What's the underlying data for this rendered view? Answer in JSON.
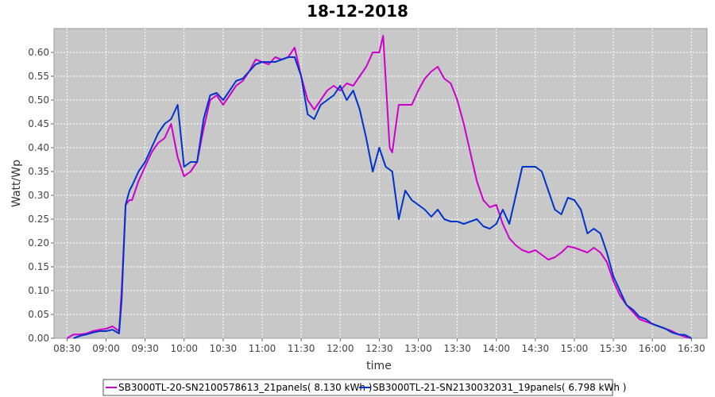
{
  "chart_data": {
    "type": "line",
    "title": "18-12-2018",
    "xlabel": "time",
    "ylabel": "Watt/Wp",
    "xlim": [
      "08:20",
      "16:42"
    ],
    "ylim": [
      0,
      0.65
    ],
    "x_ticks": [
      "08:30",
      "09:00",
      "09:30",
      "10:00",
      "10:30",
      "11:00",
      "11:30",
      "12:00",
      "12:30",
      "13:00",
      "13:30",
      "14:00",
      "14:30",
      "15:00",
      "15:30",
      "16:00",
      "16:30"
    ],
    "y_ticks": [
      "0.00",
      "0.05",
      "0.10",
      "0.15",
      "0.20",
      "0.25",
      "0.30",
      "0.35",
      "0.40",
      "0.45",
      "0.50",
      "0.55",
      "0.60"
    ],
    "grid": true,
    "legend_position": "bottom",
    "colors": {
      "plot_background": "#c8c8c8",
      "grid": "#ffffff"
    },
    "series": [
      {
        "name": "SB3000TL-20-SN2100578613_21panels( 8.130 kWh )",
        "color": "#cc00cc",
        "points": [
          [
            "08:30",
            0.0
          ],
          [
            "08:35",
            0.008
          ],
          [
            "08:40",
            0.008
          ],
          [
            "08:45",
            0.01
          ],
          [
            "08:50",
            0.015
          ],
          [
            "08:55",
            0.018
          ],
          [
            "09:00",
            0.02
          ],
          [
            "09:05",
            0.025
          ],
          [
            "09:10",
            0.015
          ],
          [
            "09:12",
            0.1
          ],
          [
            "09:15",
            0.28
          ],
          [
            "09:18",
            0.29
          ],
          [
            "09:20",
            0.29
          ],
          [
            "09:25",
            0.33
          ],
          [
            "09:30",
            0.36
          ],
          [
            "09:35",
            0.39
          ],
          [
            "09:40",
            0.41
          ],
          [
            "09:45",
            0.42
          ],
          [
            "09:50",
            0.45
          ],
          [
            "09:55",
            0.38
          ],
          [
            "10:00",
            0.34
          ],
          [
            "10:05",
            0.35
          ],
          [
            "10:10",
            0.37
          ],
          [
            "10:15",
            0.44
          ],
          [
            "10:20",
            0.5
          ],
          [
            "10:25",
            0.51
          ],
          [
            "10:30",
            0.49
          ],
          [
            "10:35",
            0.51
          ],
          [
            "10:40",
            0.53
          ],
          [
            "10:45",
            0.54
          ],
          [
            "10:50",
            0.56
          ],
          [
            "10:55",
            0.585
          ],
          [
            "11:00",
            0.58
          ],
          [
            "11:05",
            0.575
          ],
          [
            "11:10",
            0.59
          ],
          [
            "11:15",
            0.585
          ],
          [
            "11:20",
            0.59
          ],
          [
            "11:25",
            0.61
          ],
          [
            "11:30",
            0.55
          ],
          [
            "11:35",
            0.5
          ],
          [
            "11:40",
            0.48
          ],
          [
            "11:45",
            0.5
          ],
          [
            "11:50",
            0.52
          ],
          [
            "11:55",
            0.53
          ],
          [
            "12:00",
            0.52
          ],
          [
            "12:05",
            0.535
          ],
          [
            "12:10",
            0.53
          ],
          [
            "12:15",
            0.55
          ],
          [
            "12:20",
            0.57
          ],
          [
            "12:25",
            0.6
          ],
          [
            "12:30",
            0.6
          ],
          [
            "12:33",
            0.635
          ],
          [
            "12:38",
            0.4
          ],
          [
            "12:40",
            0.39
          ],
          [
            "12:45",
            0.49
          ],
          [
            "12:50",
            0.49
          ],
          [
            "12:55",
            0.49
          ],
          [
            "13:00",
            0.52
          ],
          [
            "13:05",
            0.545
          ],
          [
            "13:10",
            0.56
          ],
          [
            "13:15",
            0.57
          ],
          [
            "13:20",
            0.545
          ],
          [
            "13:25",
            0.535
          ],
          [
            "13:30",
            0.5
          ],
          [
            "13:35",
            0.45
          ],
          [
            "13:40",
            0.39
          ],
          [
            "13:45",
            0.33
          ],
          [
            "13:50",
            0.29
          ],
          [
            "13:55",
            0.275
          ],
          [
            "14:00",
            0.28
          ],
          [
            "14:05",
            0.24
          ],
          [
            "14:10",
            0.21
          ],
          [
            "14:15",
            0.195
          ],
          [
            "14:20",
            0.185
          ],
          [
            "14:25",
            0.18
          ],
          [
            "14:30",
            0.185
          ],
          [
            "14:35",
            0.175
          ],
          [
            "14:40",
            0.165
          ],
          [
            "14:45",
            0.17
          ],
          [
            "14:50",
            0.18
          ],
          [
            "14:55",
            0.193
          ],
          [
            "15:00",
            0.19
          ],
          [
            "15:05",
            0.185
          ],
          [
            "15:10",
            0.18
          ],
          [
            "15:15",
            0.19
          ],
          [
            "15:20",
            0.18
          ],
          [
            "15:25",
            0.16
          ],
          [
            "15:30",
            0.12
          ],
          [
            "15:35",
            0.09
          ],
          [
            "15:40",
            0.07
          ],
          [
            "15:45",
            0.055
          ],
          [
            "15:50",
            0.04
          ],
          [
            "15:55",
            0.035
          ],
          [
            "16:00",
            0.03
          ],
          [
            "16:05",
            0.025
          ],
          [
            "16:10",
            0.02
          ],
          [
            "16:15",
            0.015
          ],
          [
            "16:20",
            0.008
          ],
          [
            "16:25",
            0.003
          ],
          [
            "16:30",
            0.0
          ]
        ]
      },
      {
        "name": "SB3000TL-21-SN2130032031_19panels( 6.798 kWh )",
        "color": "#0033cc",
        "points": [
          [
            "08:35",
            0.0
          ],
          [
            "08:40",
            0.005
          ],
          [
            "08:45",
            0.008
          ],
          [
            "08:50",
            0.012
          ],
          [
            "08:55",
            0.015
          ],
          [
            "09:00",
            0.015
          ],
          [
            "09:05",
            0.018
          ],
          [
            "09:10",
            0.01
          ],
          [
            "09:12",
            0.08
          ],
          [
            "09:15",
            0.28
          ],
          [
            "09:18",
            0.31
          ],
          [
            "09:20",
            0.32
          ],
          [
            "09:25",
            0.35
          ],
          [
            "09:30",
            0.37
          ],
          [
            "09:35",
            0.4
          ],
          [
            "09:40",
            0.43
          ],
          [
            "09:45",
            0.45
          ],
          [
            "09:50",
            0.46
          ],
          [
            "09:55",
            0.49
          ],
          [
            "10:00",
            0.36
          ],
          [
            "10:05",
            0.37
          ],
          [
            "10:10",
            0.37
          ],
          [
            "10:15",
            0.46
          ],
          [
            "10:20",
            0.51
          ],
          [
            "10:25",
            0.515
          ],
          [
            "10:30",
            0.5
          ],
          [
            "10:35",
            0.52
          ],
          [
            "10:40",
            0.54
          ],
          [
            "10:45",
            0.545
          ],
          [
            "10:50",
            0.56
          ],
          [
            "10:55",
            0.575
          ],
          [
            "11:00",
            0.58
          ],
          [
            "11:05",
            0.58
          ],
          [
            "11:10",
            0.58
          ],
          [
            "11:15",
            0.585
          ],
          [
            "11:20",
            0.59
          ],
          [
            "11:25",
            0.59
          ],
          [
            "11:30",
            0.55
          ],
          [
            "11:35",
            0.47
          ],
          [
            "11:40",
            0.46
          ],
          [
            "11:45",
            0.49
          ],
          [
            "11:50",
            0.5
          ],
          [
            "11:55",
            0.51
          ],
          [
            "12:00",
            0.53
          ],
          [
            "12:05",
            0.5
          ],
          [
            "12:10",
            0.52
          ],
          [
            "12:15",
            0.48
          ],
          [
            "12:20",
            0.42
          ],
          [
            "12:25",
            0.35
          ],
          [
            "12:30",
            0.4
          ],
          [
            "12:35",
            0.36
          ],
          [
            "12:40",
            0.35
          ],
          [
            "12:45",
            0.25
          ],
          [
            "12:50",
            0.31
          ],
          [
            "12:55",
            0.29
          ],
          [
            "13:00",
            0.28
          ],
          [
            "13:05",
            0.27
          ],
          [
            "13:10",
            0.255
          ],
          [
            "13:15",
            0.27
          ],
          [
            "13:20",
            0.25
          ],
          [
            "13:25",
            0.245
          ],
          [
            "13:30",
            0.245
          ],
          [
            "13:35",
            0.24
          ],
          [
            "13:40",
            0.245
          ],
          [
            "13:45",
            0.25
          ],
          [
            "13:50",
            0.235
          ],
          [
            "13:55",
            0.23
          ],
          [
            "14:00",
            0.24
          ],
          [
            "14:05",
            0.27
          ],
          [
            "14:10",
            0.24
          ],
          [
            "14:15",
            0.3
          ],
          [
            "14:20",
            0.36
          ],
          [
            "14:25",
            0.36
          ],
          [
            "14:30",
            0.36
          ],
          [
            "14:35",
            0.35
          ],
          [
            "14:40",
            0.31
          ],
          [
            "14:45",
            0.27
          ],
          [
            "14:50",
            0.26
          ],
          [
            "14:55",
            0.295
          ],
          [
            "15:00",
            0.29
          ],
          [
            "15:05",
            0.27
          ],
          [
            "15:10",
            0.22
          ],
          [
            "15:15",
            0.23
          ],
          [
            "15:20",
            0.22
          ],
          [
            "15:25",
            0.18
          ],
          [
            "15:30",
            0.13
          ],
          [
            "15:35",
            0.1
          ],
          [
            "15:40",
            0.07
          ],
          [
            "15:45",
            0.06
          ],
          [
            "15:50",
            0.045
          ],
          [
            "15:55",
            0.04
          ],
          [
            "16:00",
            0.03
          ],
          [
            "16:05",
            0.025
          ],
          [
            "16:10",
            0.02
          ],
          [
            "16:15",
            0.012
          ],
          [
            "16:20",
            0.008
          ],
          [
            "16:25",
            0.007
          ],
          [
            "16:30",
            0.0
          ]
        ]
      }
    ]
  }
}
